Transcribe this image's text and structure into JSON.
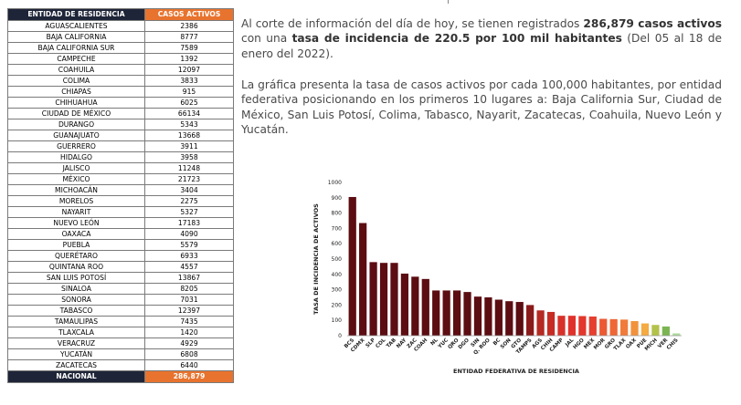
{
  "table": {
    "header_state": "ENTIDAD DE RESIDENCIA",
    "header_cases": "CASOS ACTIVOS",
    "rows": [
      {
        "state": "AGUASCALIENTES",
        "cases": "2386"
      },
      {
        "state": "BAJA CALIFORNIA",
        "cases": "8777"
      },
      {
        "state": "BAJA CALIFORNIA SUR",
        "cases": "7589"
      },
      {
        "state": "CAMPECHE",
        "cases": "1392"
      },
      {
        "state": "COAHUILA",
        "cases": "12097"
      },
      {
        "state": "COLIMA",
        "cases": "3833"
      },
      {
        "state": "CHIAPAS",
        "cases": "915"
      },
      {
        "state": "CHIHUAHUA",
        "cases": "6025"
      },
      {
        "state": "CIUDAD DE MÉXICO",
        "cases": "66134"
      },
      {
        "state": "DURANGO",
        "cases": "5343"
      },
      {
        "state": "GUANAJUATO",
        "cases": "13668"
      },
      {
        "state": "GUERRERO",
        "cases": "3911"
      },
      {
        "state": "HIDALGO",
        "cases": "3958"
      },
      {
        "state": "JALISCO",
        "cases": "11248"
      },
      {
        "state": "MÉXICO",
        "cases": "21723"
      },
      {
        "state": "MICHOACÁN",
        "cases": "3404"
      },
      {
        "state": "MORELOS",
        "cases": "2275"
      },
      {
        "state": "NAYARIT",
        "cases": "5327"
      },
      {
        "state": "NUEVO LEÓN",
        "cases": "17183"
      },
      {
        "state": "OAXACA",
        "cases": "4090"
      },
      {
        "state": "PUEBLA",
        "cases": "5579"
      },
      {
        "state": "QUERÉTARO",
        "cases": "6933"
      },
      {
        "state": "QUINTANA ROO",
        "cases": "4557"
      },
      {
        "state": "SAN LUIS POTOSÍ",
        "cases": "13867"
      },
      {
        "state": "SINALOA",
        "cases": "8205"
      },
      {
        "state": "SONORA",
        "cases": "7031"
      },
      {
        "state": "TABASCO",
        "cases": "12397"
      },
      {
        "state": "TAMAULIPAS",
        "cases": "7435"
      },
      {
        "state": "TLAXCALA",
        "cases": "1420"
      },
      {
        "state": "VERACRUZ",
        "cases": "4929"
      },
      {
        "state": "YUCATÁN",
        "cases": "6808"
      },
      {
        "state": "ZACATECAS",
        "cases": "6440"
      }
    ],
    "total_label": "NACIONAL",
    "total_value": "286,879"
  },
  "text": {
    "p1_a": "Al corte de información del día de hoy, se tienen registrados ",
    "p1_b": "286,879 casos activos",
    "p1_c": " con una ",
    "p1_d": "tasa de incidencia de 220.5 por 100 mil habitantes",
    "p1_e": " (Del 05 al 18 de enero del 2022).",
    "p2": "La gráfica presenta la tasa de casos activos por cada 100,000 habitantes, por entidad federativa posicionando en los primeros 10 lugares a: Baja California Sur, Ciudad de México, San Luis Potosí, Colima, Tabasco, Nayarit, Zacatecas, Coahuila, Nuevo León y Yucatán."
  },
  "chart_data": {
    "type": "bar",
    "xlabel": "ENTIDAD FEDERATIVA DE RESIDENCIA",
    "ylabel": "TASA DE INCIDENCIA DE ACTIVOS",
    "ylim": [
      0,
      1000
    ],
    "yticks": [
      0,
      100,
      200,
      300,
      400,
      500,
      600,
      700,
      800,
      900,
      1000
    ],
    "grid": false,
    "categories": [
      "BCS",
      "CDMX",
      "SLP",
      "COL",
      "TAB",
      "NAY",
      "ZAC",
      "COAH",
      "NL",
      "YUC",
      "QRO",
      "DGO",
      "SIN",
      "Q. ROO",
      "BC",
      "SON",
      "GTO",
      "TAMPS",
      "AGS",
      "CHIH",
      "CAMP",
      "JAL",
      "HGO",
      "MEX",
      "MOR",
      "GRO",
      "TLAX",
      "OAX",
      "PUE",
      "MICH",
      "VER",
      "CHIS"
    ],
    "values": [
      905,
      735,
      480,
      475,
      475,
      405,
      385,
      370,
      295,
      295,
      295,
      285,
      255,
      250,
      235,
      225,
      220,
      200,
      165,
      155,
      130,
      130,
      128,
      125,
      110,
      108,
      105,
      95,
      80,
      70,
      60,
      15
    ],
    "colors": [
      "#5b0d12",
      "#5b0d12",
      "#5b0d12",
      "#5b0d12",
      "#5b0d12",
      "#5b0d12",
      "#5b0d12",
      "#5b0d12",
      "#5b0d12",
      "#5b0d12",
      "#5b0d12",
      "#5b0d12",
      "#5b0d12",
      "#5b0d12",
      "#5b0d12",
      "#5b0d12",
      "#5b0d12",
      "#8b1a1a",
      "#b52a23",
      "#c62c24",
      "#d7312a",
      "#e0322a",
      "#e3362c",
      "#e53f2f",
      "#ec5a34",
      "#ee6737",
      "#f07b3a",
      "#f2923d",
      "#f4ab42",
      "#b3c24a",
      "#7bb552",
      "#aedc9a"
    ]
  }
}
